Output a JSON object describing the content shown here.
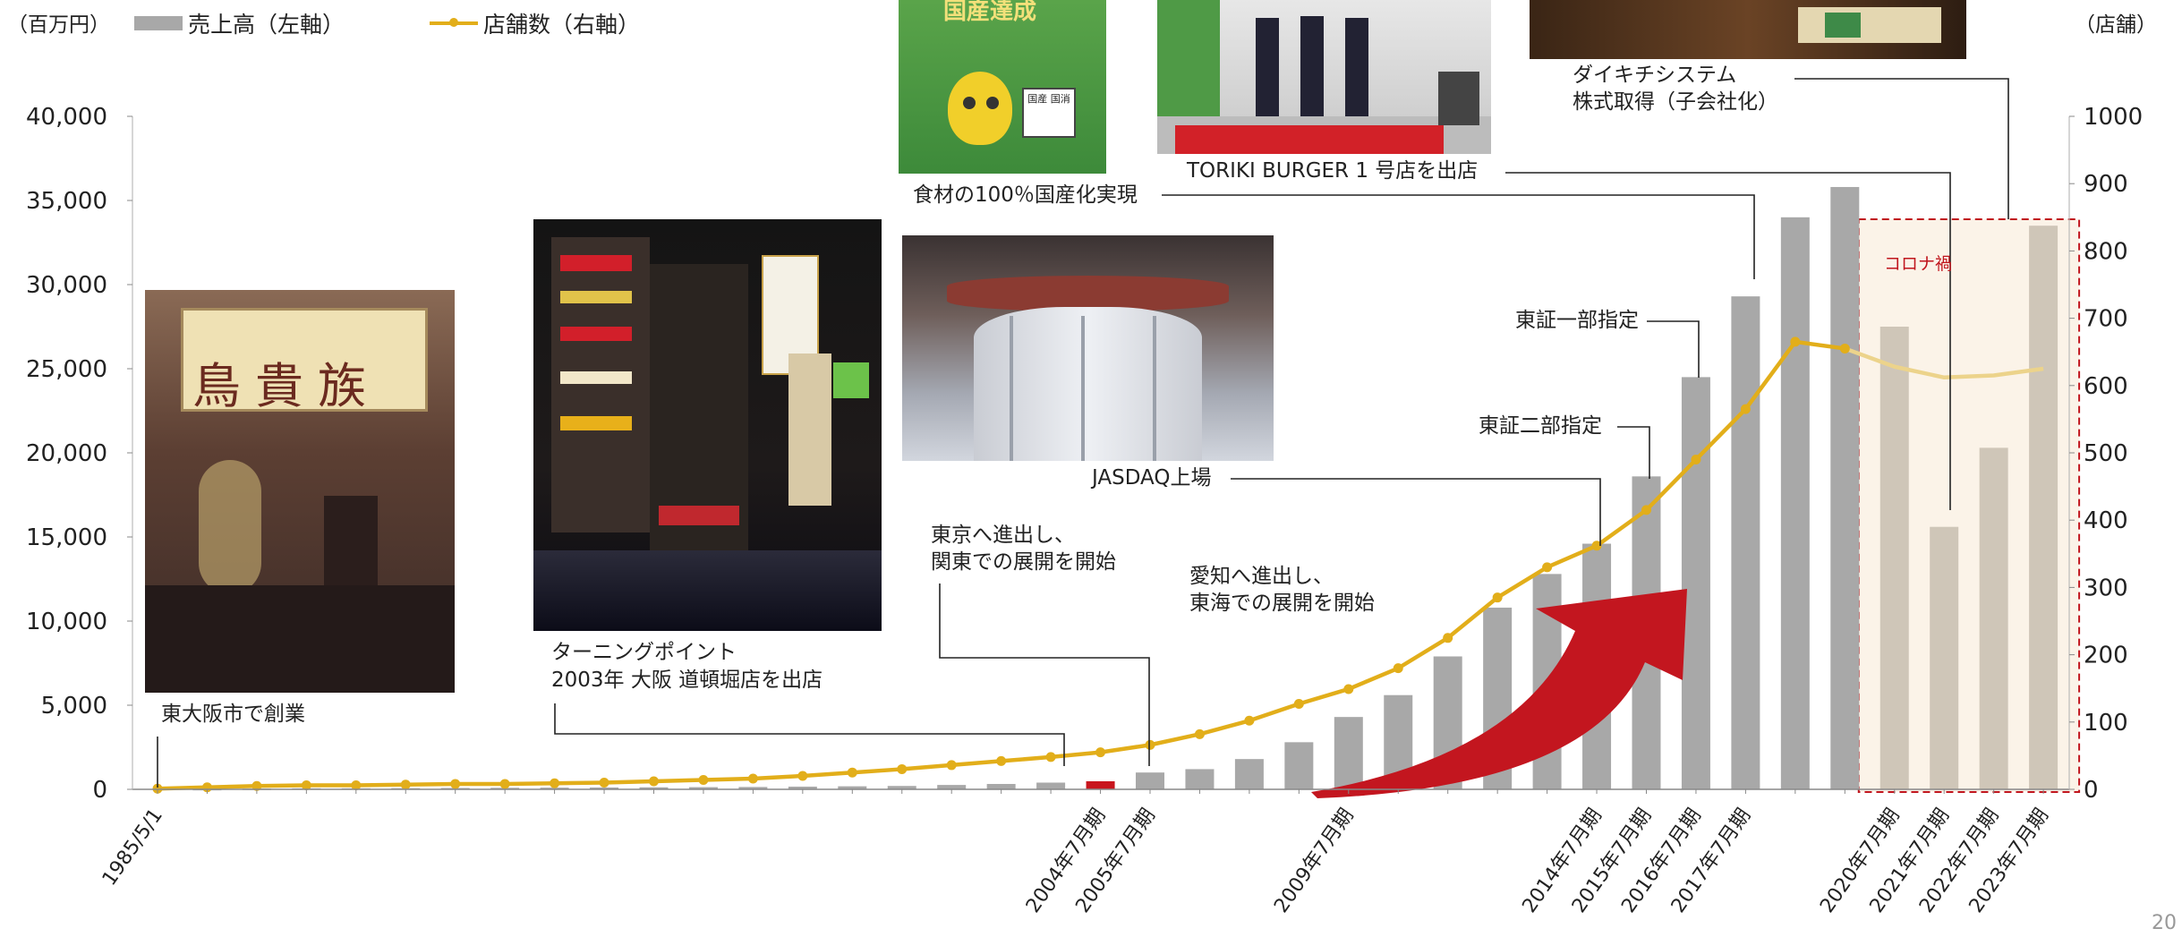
{
  "header": {
    "left_unit": "（百万円）",
    "right_unit": "（店舗）",
    "legend_bar": "売上高（左軸）",
    "legend_line": "店舗数（右軸）"
  },
  "annotations": {
    "founding": "東大阪市で創業",
    "turning_point_1": "ターニングポイント",
    "turning_point_2": "2003年 大阪 道頓堀店を出店",
    "tokyo_1": "東京へ進出し、",
    "tokyo_2": "関東での展開を開始",
    "aichi_1": "愛知へ進出し、",
    "aichi_2": "東海での展開を開始",
    "jasdaq": "JASDAQ上場",
    "tse2": "東証二部指定",
    "tse1": "東証一部指定",
    "domestic": "食材の100％国産化実現",
    "toriki": "TORIKI BURGER 1 号店を出店",
    "daikichi_1": "ダイキチシステム",
    "daikichi_2": "株式取得（子会社化）",
    "covid": "コロナ禍",
    "photo_sign_kokusan": "国産達成",
    "photo_badge": "国産 国消"
  },
  "page_number": "20",
  "colors": {
    "bar": "#a8a8a8",
    "bar_covid": "#cfc6b8",
    "bar_highlight": "#c8151d",
    "line": "#e2ae1a",
    "covid_bg": "#fbf3e8",
    "covid_border": "#c0151d",
    "arrow": "#c3161f"
  },
  "chart_data": {
    "type": "bar+line",
    "categories": [
      "1985/5/1",
      "",
      "",
      "",
      "",
      "",
      "",
      "",
      "",
      "",
      "",
      "",
      "",
      "",
      "",
      "",
      "",
      "",
      "",
      "2004年7月期",
      "2005年7月期",
      "",
      "",
      "",
      "2009年7月期",
      "",
      "",
      "",
      "",
      "2014年7月期",
      "2015年7月期",
      "2016年7月期",
      "2017年7月期",
      "",
      "",
      "2020年7月期",
      "2021年7月期",
      "2022年7月期",
      "2023年7月期"
    ],
    "series": [
      {
        "name": "売上高（左軸）",
        "axis": "left",
        "values": [
          0,
          20,
          40,
          60,
          60,
          70,
          80,
          90,
          100,
          110,
          120,
          130,
          140,
          160,
          180,
          200,
          260,
          320,
          400,
          480,
          1000,
          1200,
          1800,
          2800,
          4300,
          5600,
          7900,
          10800,
          12800,
          14600,
          18600,
          24500,
          29300,
          34000,
          35800,
          27500,
          15600,
          20300,
          33500
        ],
        "highlight_index": 19
      },
      {
        "name": "店舗数（右軸）",
        "axis": "right",
        "values": [
          1,
          3,
          5,
          6,
          6,
          7,
          8,
          8,
          9,
          10,
          12,
          14,
          16,
          20,
          25,
          30,
          36,
          42,
          48,
          55,
          66,
          82,
          102,
          127,
          149,
          180,
          225,
          285,
          330,
          362,
          415,
          490,
          565,
          665,
          655,
          628,
          612,
          615,
          625
        ]
      }
    ],
    "ylim_left": [
      0,
      40000
    ],
    "ylim_right": [
      0,
      1000
    ],
    "yticks_left": [
      "0",
      "5,000",
      "10,000",
      "15,000",
      "20,000",
      "25,000",
      "30,000",
      "35,000",
      "40,000"
    ],
    "yticks_right": [
      "0",
      "100",
      "200",
      "300",
      "400",
      "500",
      "600",
      "700",
      "800",
      "900",
      "1000"
    ],
    "covid_period": [
      35,
      38
    ]
  }
}
